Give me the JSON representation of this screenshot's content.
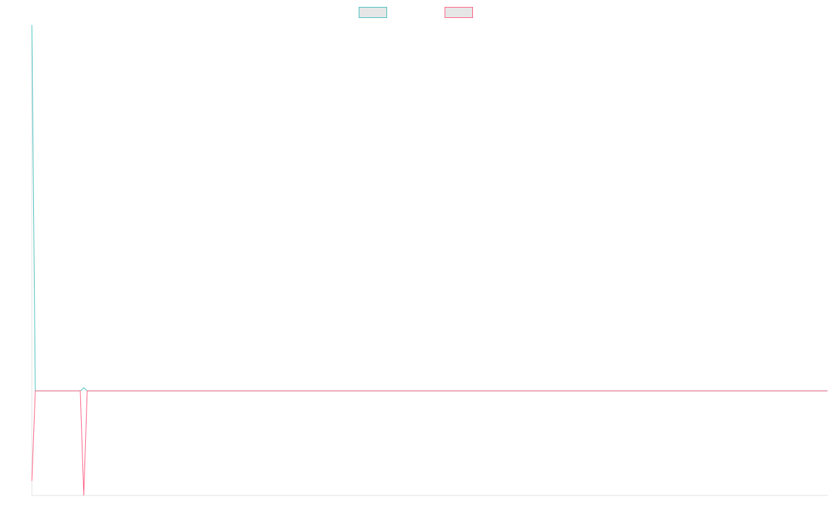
{
  "chart_data": {
    "type": "line",
    "x": [
      0,
      1,
      14,
      15,
      16,
      230
    ],
    "xlim": [
      0,
      230
    ],
    "ylim": [
      -1,
      3.5
    ],
    "grid": false,
    "legend": "top",
    "series": [
      {
        "color": "#4bc0c0",
        "values": [
          3.5,
          0,
          0,
          0.03,
          0,
          0
        ]
      },
      {
        "color": "#ff6384",
        "values": [
          -0.86,
          0,
          0,
          -1,
          0,
          0
        ]
      }
    ]
  }
}
